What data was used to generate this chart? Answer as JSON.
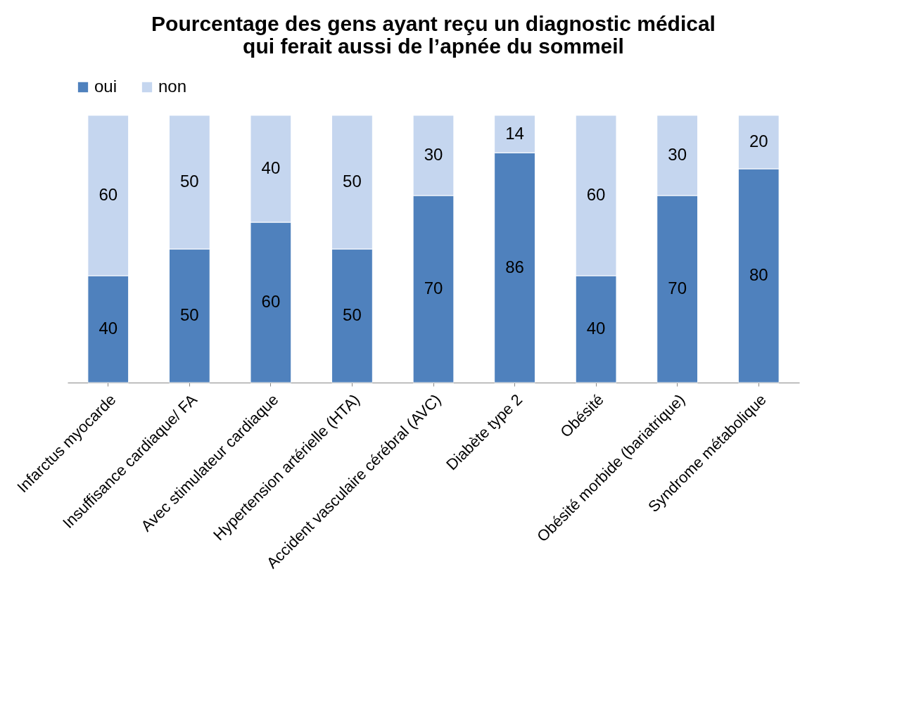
{
  "chart_data": {
    "type": "bar",
    "title": "Pourcentage des gens ayant reçu un diagnostic médical\nqui ferait aussi de l’apnée du sommeil",
    "categories": [
      "Infarctus myocarde",
      "Insuffisance cardiaque/ FA",
      "Avec stimulateur cardiaque",
      "Hypertension artérielle (HTA)",
      "Accident vasculaire cérébral (AVC)",
      "Diabète type 2",
      "Obésité",
      "Obésité morbide (bariatrique)",
      "Syndrome métabolique"
    ],
    "series": [
      {
        "name": "oui",
        "color": "#4f81bd",
        "values": [
          40,
          50,
          60,
          50,
          70,
          86,
          40,
          70,
          80
        ]
      },
      {
        "name": "non",
        "color": "#c5d6ef",
        "values": [
          60,
          50,
          40,
          50,
          30,
          14,
          60,
          30,
          20
        ]
      }
    ],
    "stacked": true,
    "data_labels": true,
    "legend": "top",
    "grid": false
  }
}
